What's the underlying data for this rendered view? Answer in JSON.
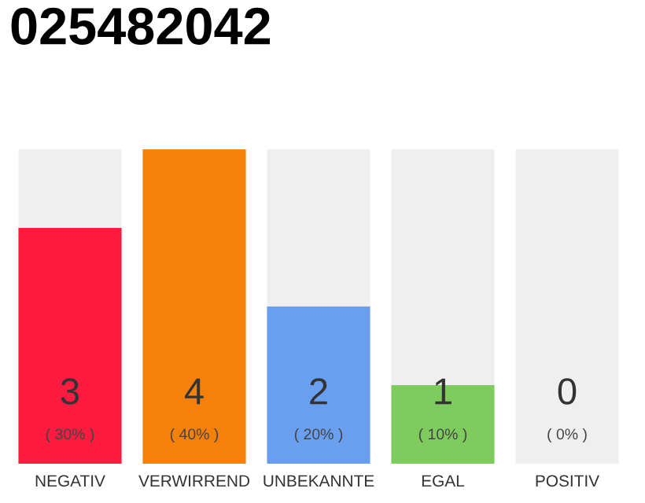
{
  "chart_data": {
    "type": "bar",
    "title": "025482042",
    "categories": [
      "NEGATIV",
      "VERWIRREND",
      "UNBEKANNTE",
      "EGAL",
      "POSITIV"
    ],
    "stacked": true,
    "series": [
      {
        "colors": [
          "#ff1a40",
          "#f5800c",
          "#6a9ff0",
          "#7ecb5e",
          "#d0d0d0"
        ],
        "values": [
          3,
          4,
          2,
          1,
          0
        ],
        "value_labels": [
          "3",
          "4",
          "2",
          "1",
          null
        ]
      },
      {
        "color": "#efefef",
        "values": [
          1,
          0,
          2,
          3,
          4
        ]
      }
    ],
    "annotations": [
      "( 30% )",
      "( 40% )",
      "( 20% )",
      "( 10% )",
      "( 0% )",
      {
        "text": "0",
        "x": "POSITIV",
        "y": 0
      }
    ]
  }
}
